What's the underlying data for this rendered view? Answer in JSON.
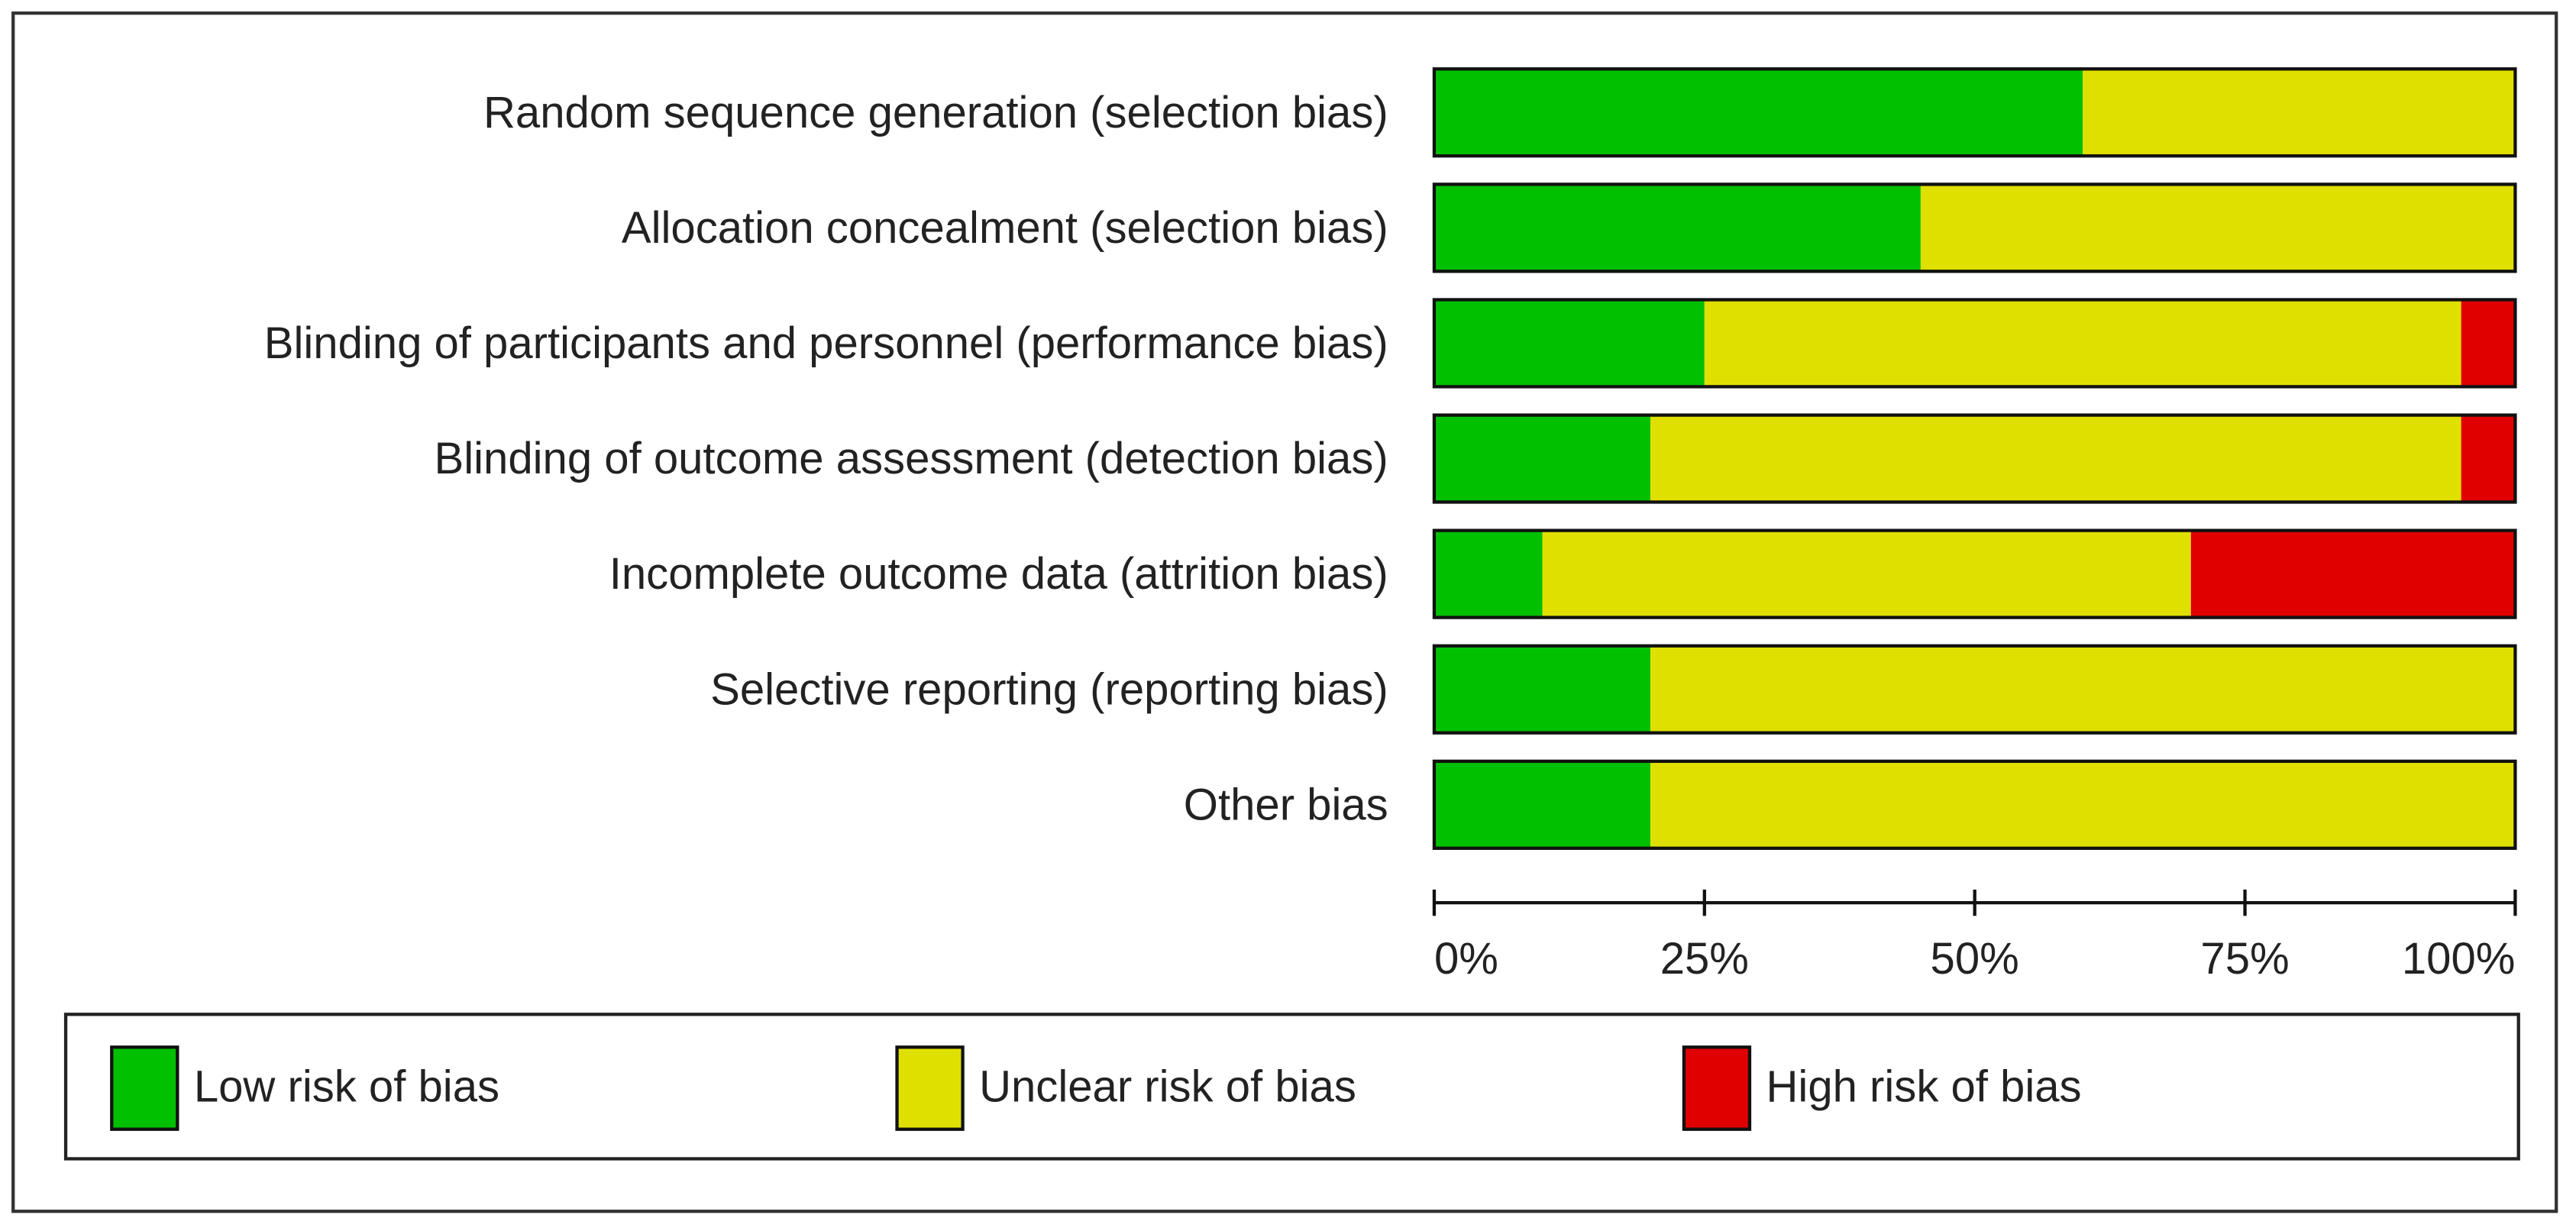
{
  "chart_data": {
    "type": "stacked-barh",
    "categories": [
      "Random sequence generation (selection bias)",
      "Allocation concealment (selection bias)",
      "Blinding of participants and personnel (performance bias)",
      "Blinding of outcome assessment (detection bias)",
      "Incomplete outcome data (attrition bias)",
      "Selective reporting (reporting bias)",
      "Other bias"
    ],
    "series": [
      {
        "name": "Low risk of bias",
        "color": "#00c000",
        "values": [
          60,
          45,
          25,
          20,
          10,
          20,
          20
        ]
      },
      {
        "name": "Unclear risk of bias",
        "color": "#e0e000",
        "values": [
          40,
          55,
          70,
          75,
          60,
          80,
          80
        ]
      },
      {
        "name": "High risk of bias",
        "color": "#e00000",
        "values": [
          0,
          0,
          5,
          5,
          30,
          0,
          0
        ]
      }
    ],
    "xlim": [
      0,
      100
    ],
    "xticks": [
      {
        "value": 0,
        "label": "0%"
      },
      {
        "value": 25,
        "label": "25%"
      },
      {
        "value": 50,
        "label": "50%"
      },
      {
        "value": 75,
        "label": "75%"
      },
      {
        "value": 100,
        "label": "100%"
      }
    ]
  }
}
